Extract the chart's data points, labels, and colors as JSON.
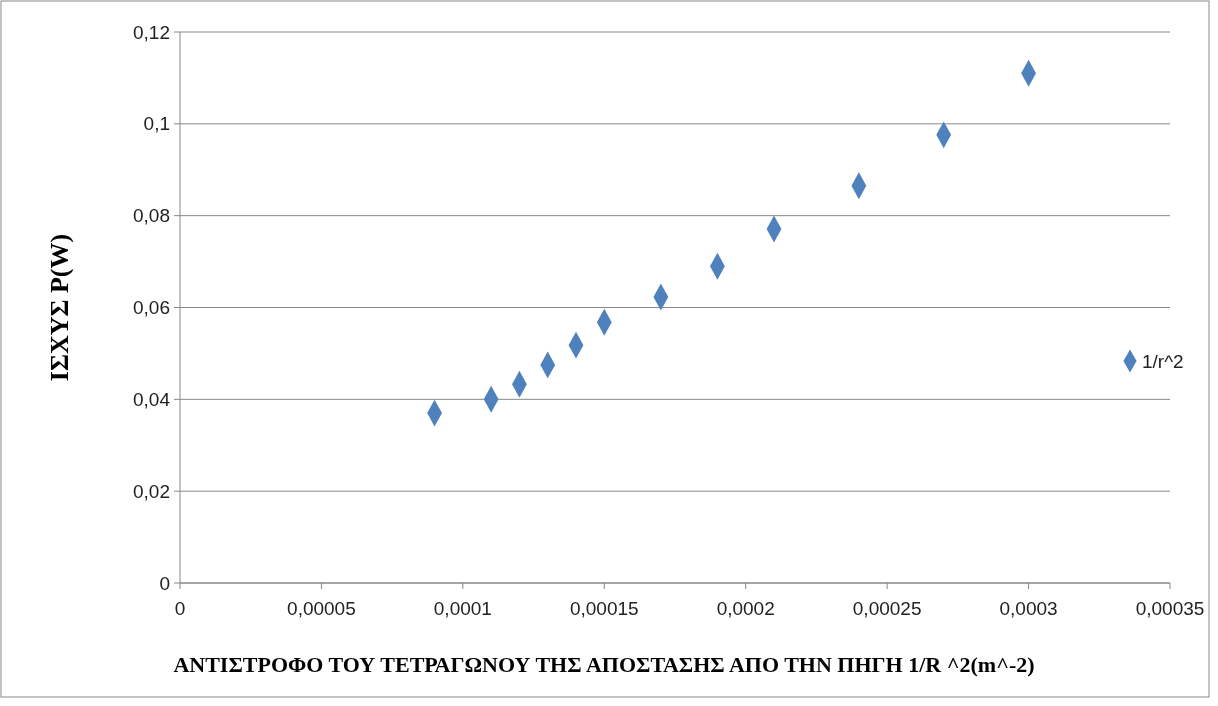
{
  "chart_data": {
    "type": "scatter",
    "xlabel": "ΑΝΤΙΣΤΡΟΦΟ ΤΟΥ ΤΕΤΡΑΓΩΝΟΥ ΤΗΣ ΑΠΟΣΤΑΣΗΣ ΑΠΟ ΤΗΝ ΠΗΓΗ 1/R ^2(m^-2)",
    "ylabel": "ΙΣΧΥΣ P(W)",
    "series": [
      {
        "name": "1/r^2",
        "color": "#4f81bd",
        "x": [
          9e-05,
          0.00011,
          0.00012,
          0.00013,
          0.00014,
          0.00015,
          0.00017,
          0.00019,
          0.00021,
          0.00024,
          0.00027,
          0.0003
        ],
        "values": [
          0.037,
          0.04,
          0.0433,
          0.0475,
          0.0518,
          0.0568,
          0.0623,
          0.069,
          0.0771,
          0.0865,
          0.0976,
          0.111
        ]
      }
    ],
    "xlim": [
      0,
      0.00035
    ],
    "xticks": [
      0,
      {
        "value": 5e-05,
        "label": "0,00005"
      },
      {
        "value": 0.0001,
        "label": "0,0001"
      },
      {
        "value": 0.00015,
        "label": "0,00015"
      },
      {
        "value": 0.0002,
        "label": "0,0002"
      },
      {
        "value": 0.00025,
        "label": "0,00025"
      },
      {
        "value": 0.0003,
        "label": "0,0003"
      },
      {
        "value": 0.00035,
        "label": "0,00035"
      }
    ],
    "ylim": [
      0,
      0.12
    ],
    "yticks": [
      0,
      {
        "value": 0.02,
        "label": "0,02"
      },
      {
        "value": 0.04,
        "label": "0,04"
      },
      {
        "value": 0.06,
        "label": "0,06"
      },
      {
        "value": 0.08,
        "label": "0,08"
      },
      {
        "value": 0.1,
        "label": "0,1"
      },
      {
        "value": 0.12,
        "label": "0,12"
      }
    ],
    "grid": "y",
    "legend": "right",
    "marker": "diamond"
  }
}
